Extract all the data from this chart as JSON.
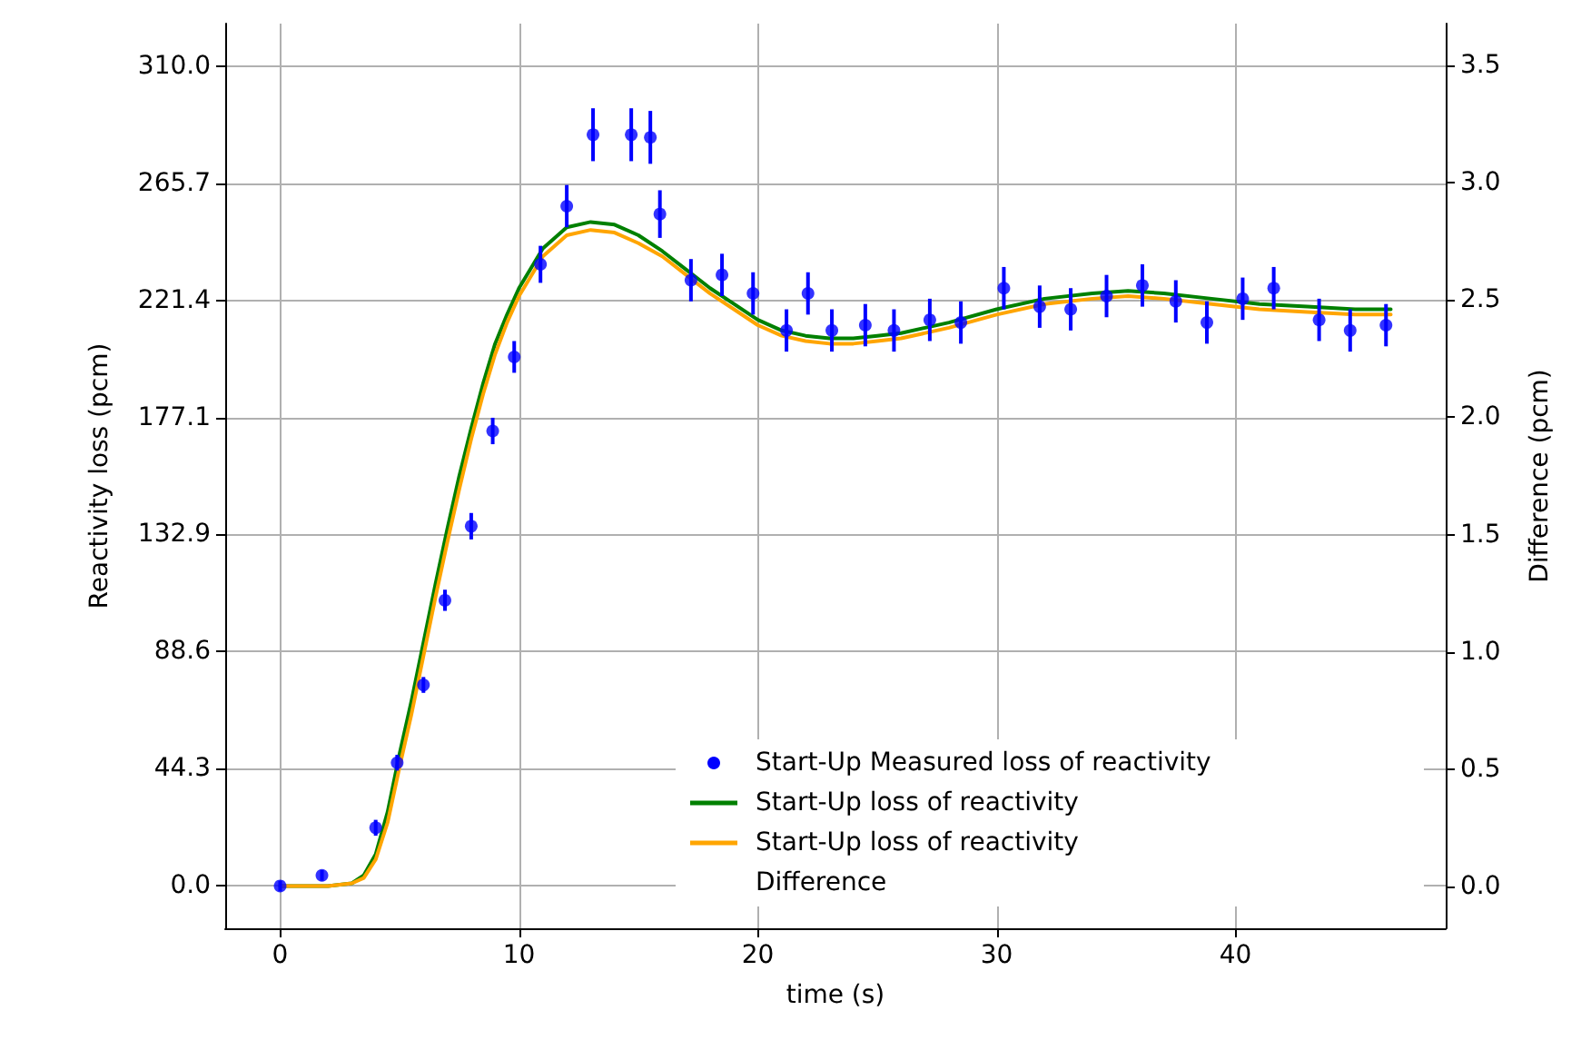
{
  "chart_data": {
    "type": "line",
    "xlabel": "time (s)",
    "ylabel": "Reactivity loss (pcm)",
    "y2label": "Difference (pcm)",
    "xlim": [
      -2.3,
      48.8
    ],
    "xticks": [
      0,
      10,
      20,
      30,
      40
    ],
    "ylim": [
      -16,
      326
    ],
    "yticks": [
      {
        "value": 0,
        "label": "0.0"
      },
      {
        "value": 44.3,
        "label": "44.3"
      },
      {
        "value": 88.6,
        "label": "88.6"
      },
      {
        "value": 132.9,
        "label": "132.9"
      },
      {
        "value": 177.1,
        "label": "177.1"
      },
      {
        "value": 221.4,
        "label": "221.4"
      },
      {
        "value": 265.7,
        "label": "265.7"
      },
      {
        "value": 310,
        "label": "310.0"
      }
    ],
    "y2lim": [
      -0.18,
      3.68
    ],
    "y2ticks": [
      {
        "value": 0,
        "label": "0.0"
      },
      {
        "value": 0.5,
        "label": "0.5"
      },
      {
        "value": 1,
        "label": "1.0"
      },
      {
        "value": 1.5,
        "label": "1.5"
      },
      {
        "value": 2,
        "label": "2.0"
      },
      {
        "value": 2.5,
        "label": "2.5"
      },
      {
        "value": 3,
        "label": "3.0"
      },
      {
        "value": 3.5,
        "label": "3.5"
      }
    ],
    "grid": true,
    "legend": "bottom right",
    "line_style": "solid",
    "marker": "none",
    "series": [
      {
        "name": "Start-Up Measured loss of reactivity",
        "type": "scatter",
        "marker": "circle",
        "color": "#0000ff",
        "x": [
          0,
          1.75,
          4,
          4.9,
          6,
          6.9,
          8,
          8.9,
          9.8,
          10.9,
          12,
          13.1,
          14.7,
          15.5,
          15.9,
          17.2,
          18.5,
          19.8,
          21.2,
          22.1,
          23.1,
          24.5,
          25.7,
          27.2,
          28.5,
          30.3,
          31.8,
          33.1,
          34.6,
          36.1,
          37.5,
          38.8,
          40.3,
          41.6,
          43.5,
          44.8,
          46.3
        ],
        "values": [
          0,
          4,
          22,
          46.6,
          76,
          108,
          136,
          172,
          200,
          235,
          257,
          284,
          284,
          283,
          254,
          229,
          231,
          224,
          210,
          224,
          210,
          212,
          210,
          214,
          213,
          226,
          219,
          218,
          223,
          227,
          221,
          213,
          222,
          226,
          214,
          210,
          212
        ],
        "errors": [
          2,
          2,
          3,
          3,
          3,
          4,
          5,
          5,
          6,
          7,
          8,
          10,
          10,
          10,
          9,
          8,
          8,
          8,
          8,
          8,
          8,
          8,
          8,
          8,
          8,
          8,
          8,
          8,
          8,
          8,
          8,
          8,
          8,
          8,
          8,
          8,
          8
        ]
      },
      {
        "name": "Start-Up loss of reactivity",
        "color": "#008000",
        "x": [
          0,
          2,
          3,
          3.5,
          4,
          4.5,
          5,
          5.5,
          6,
          6.5,
          7,
          7.5,
          8,
          8.5,
          9,
          9.5,
          10,
          11,
          12,
          13,
          14,
          15,
          16,
          17,
          18,
          19,
          20,
          21,
          22,
          23,
          24,
          25,
          26,
          28,
          30,
          32,
          34,
          35.5,
          37,
          39,
          41,
          43,
          45,
          46.5
        ],
        "values": [
          0,
          0,
          1,
          4,
          12,
          28,
          50,
          70,
          92,
          114,
          135,
          155,
          173,
          190,
          205,
          216,
          226,
          241,
          249,
          251,
          250,
          246,
          240,
          233,
          226,
          220,
          214,
          210,
          208,
          207,
          207,
          208,
          209,
          213,
          218,
          222,
          224,
          225,
          224,
          222,
          220,
          219,
          218,
          218
        ]
      },
      {
        "name": "Start-Up loss of reactivity",
        "color": "#ffa500",
        "x": [
          0,
          2,
          3,
          3.5,
          4,
          4.5,
          5,
          5.5,
          6,
          6.5,
          7,
          7.5,
          8,
          8.5,
          9,
          9.5,
          10,
          11,
          12,
          13,
          14,
          15,
          16,
          17,
          18,
          19,
          20,
          21,
          22,
          23,
          24,
          25,
          26,
          28,
          30,
          32,
          34,
          35.5,
          37,
          39,
          41,
          43,
          45,
          46.5
        ],
        "values": [
          0,
          0,
          1,
          3,
          10,
          24,
          45,
          65,
          87,
          109,
          130,
          150,
          169,
          186,
          201,
          213,
          223,
          238,
          246,
          248,
          247,
          243,
          238,
          231,
          224,
          218,
          212,
          208,
          206,
          205,
          205,
          206,
          207,
          211,
          216,
          220,
          222,
          223,
          222,
          220,
          218,
          217,
          216,
          216
        ]
      },
      {
        "name": "Difference",
        "type": "line"
      }
    ]
  }
}
